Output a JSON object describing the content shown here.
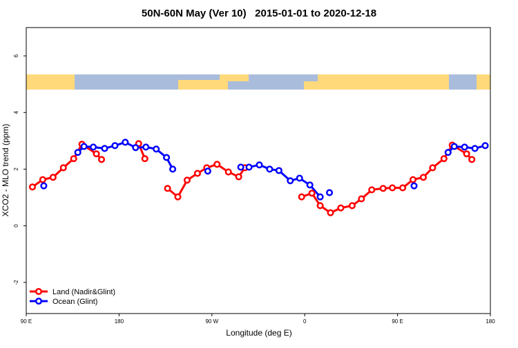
{
  "chart_data": {
    "type": "line",
    "title": "50N-60N May (Ver 10)   2015-01-01 to 2020-12-18",
    "x_label": "Longitude (deg E)",
    "y_label": "XCO2 - MLO trend (ppm)",
    "xlim": [
      -270,
      180
    ],
    "xticks": [
      {
        "value": -270,
        "label": "90 E"
      },
      {
        "value": -180,
        "label": "180"
      },
      {
        "value": -90,
        "label": "90 W"
      },
      0,
      {
        "value": 90,
        "label": "90 E"
      },
      180
    ],
    "ylim": [
      -3.1,
      7
    ],
    "yticks": [
      -2,
      0,
      2,
      4,
      6
    ],
    "legend": "bottom-left",
    "series": [
      {
        "name": "Land (Nadir&Glint)",
        "color": "#ff0000",
        "x": [
          -264,
          -254,
          -244,
          -234,
          -224,
          -216,
          -202,
          -197,
          null,
          -161,
          -155,
          null,
          -133,
          -123,
          -114,
          -104,
          -95,
          -85,
          -74,
          -64,
          -58,
          null,
          -3,
          7,
          15,
          25,
          35,
          46,
          55,
          65,
          76,
          85,
          95,
          105,
          115,
          124,
          135,
          143,
          157,
          162
        ],
        "values": [
          1.37,
          1.63,
          1.71,
          2.05,
          2.37,
          2.88,
          2.54,
          2.34,
          null,
          2.9,
          2.37,
          null,
          1.32,
          1.02,
          1.61,
          1.85,
          2.05,
          2.17,
          1.9,
          1.73,
          2.05,
          null,
          1.02,
          1.15,
          0.71,
          0.46,
          0.63,
          0.71,
          0.95,
          1.27,
          1.32,
          1.34,
          1.34,
          1.63,
          1.71,
          2.05,
          2.37,
          2.85,
          2.54,
          2.34
        ]
      },
      {
        "name": "Ocean (Glint)",
        "color": "#0000ff",
        "x": [
          -253,
          null,
          -220,
          -214,
          -205,
          -194,
          -184,
          -174,
          -164,
          -154,
          -144,
          -134,
          -128,
          null,
          -94,
          null,
          -62,
          -54,
          -44,
          -34,
          -25,
          -14,
          -5,
          5,
          15,
          null,
          24,
          null,
          106,
          null,
          139,
          145,
          155,
          165,
          175
        ],
        "values": [
          1.41,
          null,
          2.59,
          2.8,
          2.78,
          2.73,
          2.83,
          2.95,
          2.76,
          2.78,
          2.71,
          2.41,
          2.0,
          null,
          1.93,
          null,
          2.07,
          2.07,
          2.15,
          2.0,
          1.95,
          1.59,
          1.68,
          1.44,
          1.02,
          null,
          1.17,
          null,
          1.41,
          null,
          2.59,
          2.8,
          2.78,
          2.73,
          2.83
        ]
      }
    ]
  }
}
